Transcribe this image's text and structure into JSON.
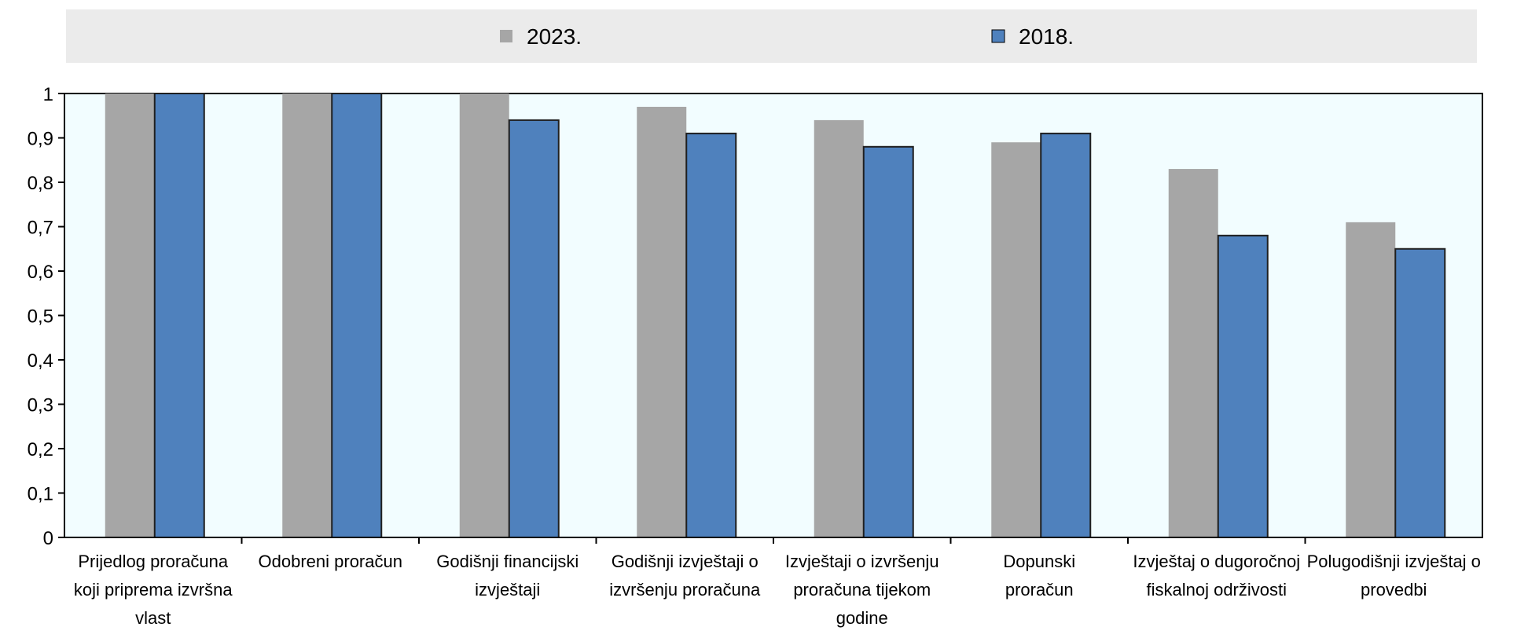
{
  "chart_data": {
    "type": "bar",
    "title": "",
    "xlabel": "",
    "ylabel": "",
    "ylim": [
      0,
      1
    ],
    "yticks": [
      "0",
      "0,1",
      "0,2",
      "0,3",
      "0,4",
      "0,5",
      "0,6",
      "0,7",
      "0,8",
      "0,9",
      "1"
    ],
    "legend_position": "top",
    "grid": false,
    "categories": [
      [
        "Prijedlog proračuna",
        "koji priprema izvršna",
        "vlast"
      ],
      [
        "Odobreni proračun"
      ],
      [
        "Godišnji financijski",
        "izvještaji"
      ],
      [
        "Godišnji izvještaji o",
        "izvršenju proračuna"
      ],
      [
        "Izvještaji o izvršenju",
        "proračuna tijekom",
        "godine"
      ],
      [
        "Dopunski",
        "proračun"
      ],
      [
        "Izvještaj o dugoročnoj",
        "fiskalnoj održivosti"
      ],
      [
        "Polugodišnji izvještaj o",
        "provedbi"
      ]
    ],
    "series": [
      {
        "name": "2023.",
        "color": "#a6a6a6",
        "values": [
          1,
          1,
          1,
          0.97,
          0.94,
          0.89,
          0.83,
          0.71
        ]
      },
      {
        "name": "2018.",
        "color": "#4f81bd",
        "values": [
          1,
          1,
          0.94,
          0.91,
          0.88,
          0.91,
          0.68,
          0.65
        ]
      }
    ],
    "colors": {
      "plot_background": "#f2fdff",
      "legend_background": "#ebebeb"
    }
  }
}
